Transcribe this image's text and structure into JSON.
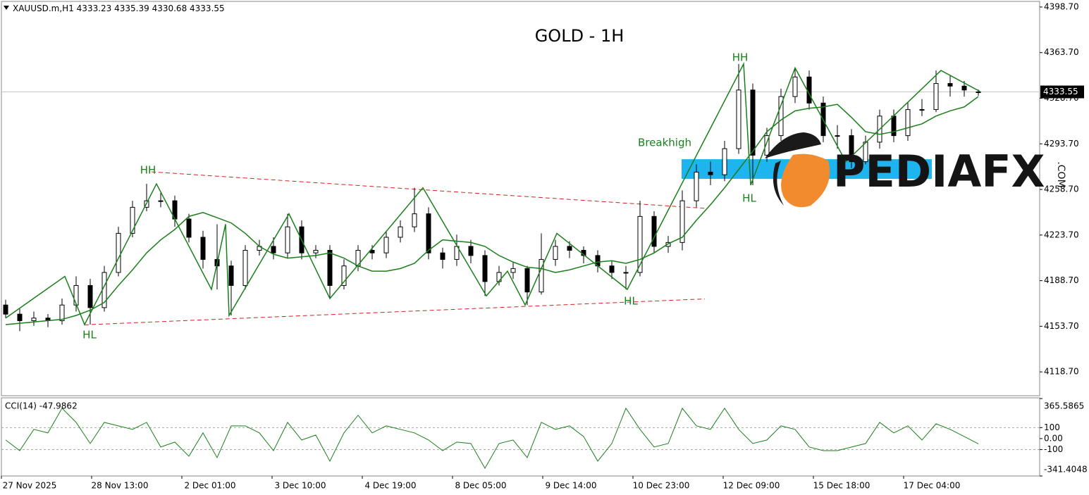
{
  "chart_data": {
    "type": "candlestick",
    "title": "GOLD - 1H",
    "symbol": "XAUUSD.m,H1",
    "open": [
      4170,
      4163,
      4158,
      4160,
      4158,
      4170,
      4185,
      4168,
      4195,
      4225,
      4245,
      4250,
      4250,
      4236,
      4222,
      4205,
      4200,
      4185,
      4212,
      4215,
      4210,
      4230,
      4210,
      4212,
      4185,
      4200,
      4212,
      4210,
      4222,
      4230,
      4240,
      4210,
      4205,
      4215,
      4208,
      4188,
      4195,
      4198,
      4180,
      4205,
      4215,
      4212,
      4208,
      4200,
      4195,
      4195,
      4238,
      4215,
      4218,
      4250,
      4272,
      4270,
      4290,
      4335,
      4285,
      4300,
      4330,
      4345,
      4325,
      4300,
      4300,
      4280,
      4295,
      4315,
      4300,
      4320,
      4320,
      4340,
      4338,
      4333.23
    ],
    "high": [
      4174,
      4167,
      4165,
      4163,
      4175,
      4192,
      4190,
      4200,
      4230,
      4250,
      4263,
      4256,
      4254,
      4240,
      4227,
      4232,
      4204,
      4216,
      4220,
      4222,
      4240,
      4235,
      4216,
      4216,
      4205,
      4216,
      4216,
      4227,
      4235,
      4260,
      4245,
      4214,
      4224,
      4220,
      4212,
      4200,
      4203,
      4200,
      4225,
      4220,
      4219,
      4215,
      4212,
      4204,
      4200,
      4250,
      4242,
      4223,
      4258,
      4278,
      4280,
      4296,
      4355,
      4340,
      4306,
      4336,
      4352,
      4350,
      4330,
      4308,
      4305,
      4300,
      4320,
      4320,
      4326,
      4328,
      4350,
      4346,
      4342,
      4335.39
    ],
    "low": [
      4160,
      4150,
      4154,
      4153,
      4155,
      4165,
      4155,
      4165,
      4192,
      4222,
      4242,
      4245,
      4230,
      4218,
      4198,
      4182,
      4162,
      4182,
      4208,
      4205,
      4206,
      4205,
      4206,
      4175,
      4182,
      4196,
      4205,
      4206,
      4218,
      4226,
      4205,
      4198,
      4200,
      4202,
      4177,
      4185,
      4190,
      4170,
      4178,
      4200,
      4206,
      4202,
      4195,
      4190,
      4182,
      4192,
      4210,
      4210,
      4212,
      4245,
      4262,
      4265,
      4286,
      4262,
      4280,
      4296,
      4325,
      4320,
      4295,
      4290,
      4275,
      4278,
      4290,
      4295,
      4296,
      4315,
      4318,
      4330,
      4330,
      4330.68
    ],
    "close": [
      4163,
      4158,
      4160,
      4158,
      4170,
      4185,
      4168,
      4195,
      4225,
      4245,
      4250,
      4250,
      4236,
      4222,
      4205,
      4200,
      4185,
      4212,
      4215,
      4210,
      4230,
      4210,
      4212,
      4185,
      4200,
      4212,
      4210,
      4222,
      4230,
      4240,
      4210,
      4205,
      4215,
      4208,
      4188,
      4195,
      4198,
      4180,
      4205,
      4215,
      4212,
      4208,
      4200,
      4195,
      4195,
      4238,
      4215,
      4218,
      4250,
      4272,
      4270,
      4290,
      4335,
      4285,
      4300,
      4330,
      4345,
      4325,
      4300,
      4300,
      4280,
      4295,
      4315,
      4300,
      4320,
      4320,
      4340,
      4338,
      4335,
      4333.55
    ],
    "ma": {
      "color": "#1a7f1a",
      "values": [
        4155,
        4156,
        4157,
        4158,
        4159,
        4162,
        4166,
        4172,
        4185,
        4197,
        4210,
        4220,
        4228,
        4238,
        4241,
        4237,
        4233,
        4225,
        4215,
        4209,
        4206,
        4207,
        4208,
        4210,
        4206,
        4200,
        4196,
        4196,
        4198,
        4202,
        4212,
        4220,
        4219,
        4218,
        4215,
        4208,
        4203,
        4199,
        4198,
        4195,
        4197,
        4200,
        4203,
        4204,
        4202,
        4205,
        4210,
        4217,
        4222,
        4235,
        4247,
        4260,
        4274,
        4288,
        4303,
        4312,
        4319,
        4321,
        4322,
        4324,
        4314,
        4303,
        4301,
        4303,
        4306,
        4309,
        4315,
        4319,
        4322,
        4330
      ]
    },
    "zigzag": {
      "color": "#1a7f1a",
      "x": [
        0,
        4.2,
        5.6,
        10.7,
        14.6,
        15.6,
        15.85,
        20.1,
        23,
        29.6,
        34.1,
        35.6,
        36.85,
        39.1,
        44.1,
        52.35,
        52.85,
        56,
        59.6,
        66.35,
        69.1
      ],
      "values": [
        4160,
        4192,
        4155,
        4263,
        4182,
        4232,
        4162,
        4240,
        4175,
        4260,
        4177,
        4196,
        4170,
        4225,
        4182,
        4355,
        4262,
        4352,
        4280,
        4350,
        4334
      ]
    },
    "trendlines": [
      {
        "color": "#d42020",
        "x": [
          10.35,
          49.6
        ],
        "values": [
          4272.2,
          4244.2
        ]
      },
      {
        "color": "#d42020",
        "x": [
          5.6,
          49.6
        ],
        "values": [
          4154.8,
          4174.7
        ]
      }
    ],
    "zone": {
      "color": "#1eb4f0",
      "x": [
        47.95,
        65.7
      ],
      "range": [
        4266.8,
        4281.9
      ]
    },
    "annotations": [
      "HH",
      "HL",
      "Breakhigh",
      "HL",
      "HH",
      "HL"
    ],
    "current_price": 4333.55,
    "ylim": [
      4100.4,
      4403.0
    ],
    "yticks": [
      {
        "value": 4398.7,
        "label": "4398.70"
      },
      {
        "value": 4363.7,
        "label": "4363.70"
      },
      {
        "value": 4328.7,
        "label": "4328.70"
      },
      {
        "value": 4293.7,
        "label": "4293.70"
      },
      {
        "value": 4258.7,
        "label": "4258.70"
      },
      {
        "value": 4223.7,
        "label": "4223.70"
      },
      {
        "value": 4188.7,
        "label": "4188.70"
      },
      {
        "value": 4153.7,
        "label": "4153.70"
      },
      {
        "value": 4118.7,
        "label": "4118.70"
      }
    ],
    "x_labels": [
      "27 Nov 2025",
      "28 Nov 13:00",
      "2 Dec 01:00",
      "3 Dec 10:00",
      "4 Dec 19:00",
      "8 Dec 05:00",
      "9 Dec 14:00",
      "10 Dec 23:00",
      "12 Dec 09:00",
      "15 Dec 18:00",
      "17 Dec 04:00"
    ],
    "cci": {
      "label": "CCI(14) -47.9862",
      "color": "#1a7f1a",
      "values": [
        -13,
        -110,
        84,
        52,
        277,
        148,
        -45,
        148,
        116,
        84,
        148,
        -77,
        -32,
        -161,
        52,
        -174,
        116,
        116,
        52,
        -110,
        148,
        -13,
        32,
        -206,
        52,
        213,
        52,
        116,
        84,
        52,
        -13,
        -110,
        -32,
        -45,
        -271,
        -45,
        -13,
        -174,
        148,
        84,
        116,
        19,
        -206,
        -45,
        277,
        84,
        -77,
        -45,
        277,
        116,
        84,
        277,
        84,
        -45,
        -13,
        116,
        84,
        -77,
        -110,
        -110,
        -77,
        -45,
        148,
        52,
        116,
        -13,
        135,
        84,
        19,
        -47.9862
      ],
      "ylim": [
        -341.4048,
        365.5865
      ],
      "yticks": [
        365.5865,
        100,
        {
          "value": 0,
          "label": "0.00"
        },
        -100,
        -341.4048
      ],
      "levels": [
        100,
        -100
      ]
    },
    "watermark": {
      "brand": "PEDIAFX",
      "suffix": ".COM"
    }
  }
}
